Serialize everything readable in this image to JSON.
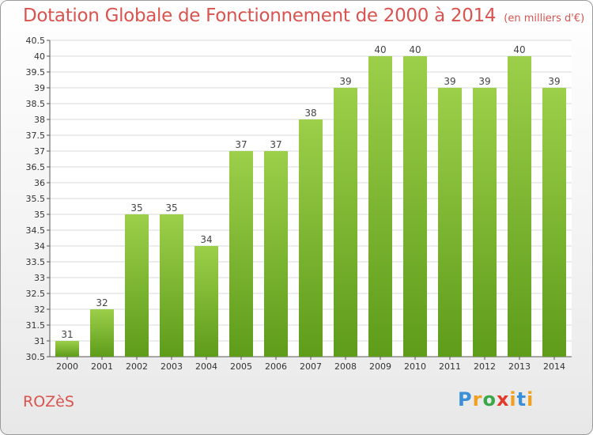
{
  "header": {
    "title": "Dotation Globale de Fonctionnement de 2000 à 2014",
    "unit": "(en milliers d'€)"
  },
  "footer": {
    "commune": "ROZèS",
    "logo": [
      "P",
      "r",
      "o",
      "x",
      "i",
      "t",
      "i"
    ]
  },
  "colors": {
    "title": "#d9534f",
    "bar_light": "#9ccf4a",
    "bar_dark": "#5e9c1a",
    "grid": "#d8d8d8"
  },
  "chart_data": {
    "type": "bar",
    "title": "Dotation Globale de Fonctionnement de 2000 à 2014",
    "subtitle": "(en milliers d'€)",
    "categories": [
      "2000",
      "2001",
      "2002",
      "2003",
      "2004",
      "2005",
      "2006",
      "2007",
      "2008",
      "2009",
      "2010",
      "2011",
      "2012",
      "2013",
      "2014"
    ],
    "values": [
      31,
      32,
      35,
      35,
      34,
      37,
      37,
      38,
      39,
      40,
      40,
      39,
      39,
      40,
      39
    ],
    "ylim": [
      30.5,
      40.5
    ],
    "yticks": [
      "30.5",
      "31",
      "31.5",
      "32",
      "32.5",
      "33",
      "33.5",
      "34",
      "34.5",
      "35",
      "35.5",
      "36",
      "36.5",
      "37",
      "37.5",
      "38",
      "38.5",
      "39",
      "39.5",
      "40",
      "40.5"
    ],
    "xlabel": "",
    "ylabel": "",
    "grid": true,
    "data_labels": true
  }
}
